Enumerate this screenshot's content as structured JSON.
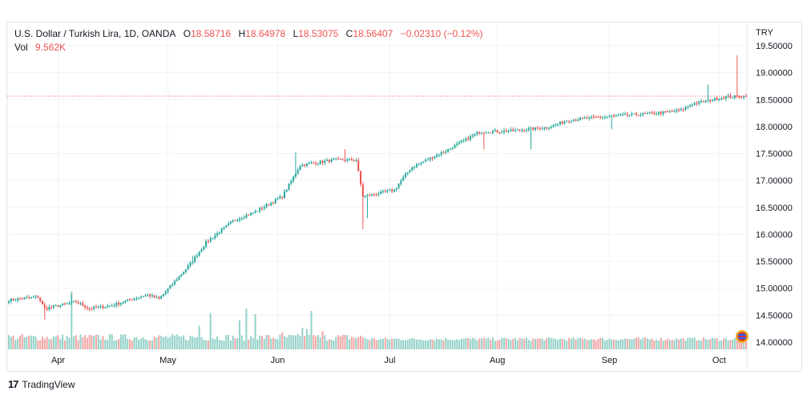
{
  "legend": {
    "symbol": "U.S. Dollar / Turkish Lira, 1D, OANDA",
    "o_label": "O",
    "open": "18.58716",
    "h_label": "H",
    "high": "18.64978",
    "l_label": "L",
    "low": "18.53075",
    "c_label": "C",
    "close": "18.56407",
    "change": "−0.02310 (−0.12%)",
    "vol_label": "Vol",
    "vol_value": "9.562K"
  },
  "footer": {
    "brand": "TradingView",
    "logo_glyph": "17"
  },
  "colors": {
    "up": "#26a69a",
    "down": "#ef5350",
    "vol_up": "#94d2c9",
    "vol_down": "#f2a7a5",
    "last_line": "#ef5350"
  },
  "chart_data": {
    "type": "candlestick",
    "currency": "TRY",
    "ylim": [
      13.95,
      19.55
    ],
    "y_ticks": [
      "19.50000",
      "19.00000",
      "18.50000",
      "18.00000",
      "17.50000",
      "17.00000",
      "16.50000",
      "16.00000",
      "15.50000",
      "15.00000",
      "14.50000",
      "14.00000"
    ],
    "x_tick_labels": [
      "Apr",
      "May",
      "Jun",
      "Jul",
      "Aug",
      "Sep",
      "Oct"
    ],
    "x_tick_index": [
      22,
      71,
      120,
      170,
      218,
      268,
      317
    ],
    "last_price": 18.56407,
    "anchors": [
      [
        0,
        14.78
      ],
      [
        13,
        14.84
      ],
      [
        16,
        14.62
      ],
      [
        30,
        14.75
      ],
      [
        36,
        14.62
      ],
      [
        46,
        14.68
      ],
      [
        55,
        14.8
      ],
      [
        62,
        14.88
      ],
      [
        67,
        14.8
      ],
      [
        80,
        15.4
      ],
      [
        88,
        15.85
      ],
      [
        100,
        16.25
      ],
      [
        110,
        16.42
      ],
      [
        122,
        16.7
      ],
      [
        130,
        17.28
      ],
      [
        145,
        17.38
      ],
      [
        155,
        17.38
      ],
      [
        158,
        16.7
      ],
      [
        172,
        16.82
      ],
      [
        176,
        17.05
      ],
      [
        180,
        17.25
      ],
      [
        195,
        17.55
      ],
      [
        210,
        17.9
      ],
      [
        225,
        17.92
      ],
      [
        240,
        17.98
      ],
      [
        250,
        18.12
      ],
      [
        265,
        18.18
      ],
      [
        290,
        18.25
      ],
      [
        300,
        18.3
      ],
      [
        305,
        18.42
      ],
      [
        320,
        18.55
      ],
      [
        328,
        18.56
      ]
    ],
    "spikes": [
      {
        "i": 16,
        "low": 14.42
      },
      {
        "i": 28,
        "high": 14.88
      },
      {
        "i": 82,
        "high": 15.6
      },
      {
        "i": 128,
        "high": 17.52
      },
      {
        "i": 150,
        "high": 17.58
      },
      {
        "i": 158,
        "low": 16.1
      },
      {
        "i": 160,
        "low": 16.3
      },
      {
        "i": 212,
        "low": 17.58
      },
      {
        "i": 233,
        "low": 17.58
      },
      {
        "i": 269,
        "low": 17.95
      },
      {
        "i": 312,
        "high": 18.78
      },
      {
        "i": 325,
        "high": 19.32
      }
    ],
    "volume_ylim": [
      0,
      7.8
    ],
    "volume_base": [
      0.8,
      1.2
    ],
    "volume_spikes": [
      {
        "i": 28,
        "v": 5.4
      },
      {
        "i": 85,
        "v": 2.2
      },
      {
        "i": 90,
        "v": 3.4
      },
      {
        "i": 103,
        "v": 2.7
      },
      {
        "i": 106,
        "v": 3.8
      },
      {
        "i": 110,
        "v": 3.3
      },
      {
        "i": 122,
        "v": 1.6
      },
      {
        "i": 131,
        "v": 2.0
      },
      {
        "i": 133,
        "v": 1.9
      },
      {
        "i": 135,
        "v": 3.6
      },
      {
        "i": 140,
        "v": 1.7
      },
      {
        "i": 325,
        "v": 1.4
      }
    ]
  }
}
